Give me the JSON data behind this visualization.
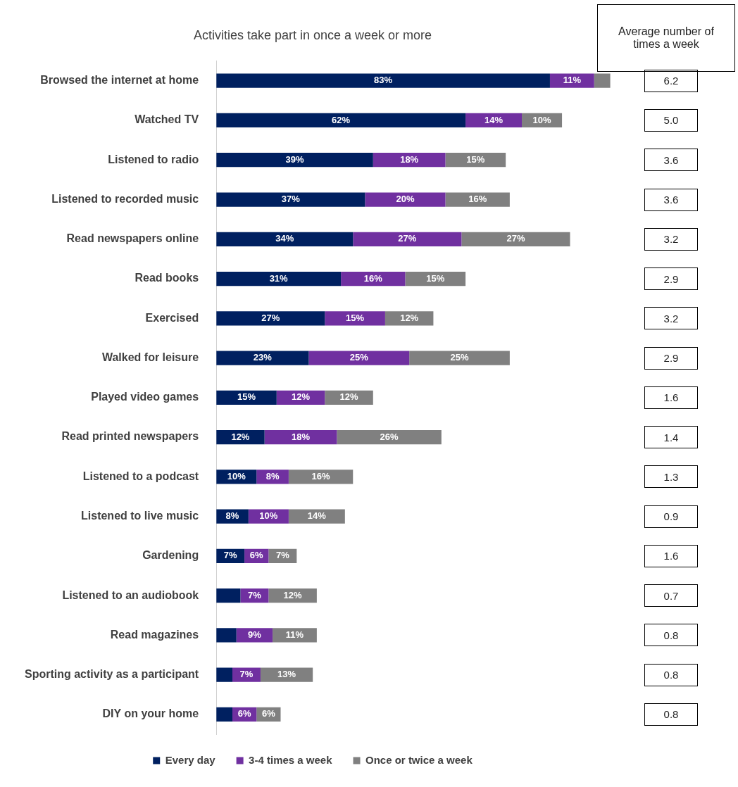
{
  "chart_data": {
    "type": "bar",
    "orientation": "horizontal",
    "stacked": true,
    "title": "Activities take part in once a week or more",
    "categories": [
      "Browsed the internet at home",
      "Watched TV",
      "Listened to radio",
      "Listened to recorded music",
      "Read newspapers online",
      "Read books",
      "Exercised",
      "Walked for leisure",
      "Played video games",
      "Read printed newspapers",
      "Listened to a podcast",
      "Listened to live music",
      "Gardening",
      "Listened to an audiobook",
      "Read magazines",
      "Sporting activity as a participant",
      "DIY on your home"
    ],
    "series": [
      {
        "name": "Every day",
        "color": "#002060",
        "values": [
          83,
          62,
          39,
          37,
          34,
          31,
          27,
          23,
          15,
          12,
          10,
          8,
          7,
          6,
          5,
          4,
          4
        ],
        "value_labels": [
          "83%",
          "62%",
          "39%",
          "37%",
          "34%",
          "31%",
          "27%",
          "23%",
          "15%",
          "12%",
          "10%",
          "8%",
          "7%",
          null,
          null,
          null,
          null
        ]
      },
      {
        "name": "3-4 times a week",
        "color": "#7030a0",
        "values": [
          11,
          14,
          18,
          20,
          27,
          16,
          15,
          25,
          12,
          18,
          8,
          10,
          6,
          7,
          9,
          7,
          6
        ],
        "value_labels": [
          "11%",
          "14%",
          "18%",
          "20%",
          "27%",
          "16%",
          "15%",
          "25%",
          "12%",
          "18%",
          "8%",
          "10%",
          "6%",
          "7%",
          "9%",
          "7%",
          "6%"
        ]
      },
      {
        "name": "Once or twice a week",
        "color": "#808080",
        "values": [
          4,
          10,
          15,
          16,
          27,
          15,
          12,
          25,
          12,
          26,
          16,
          14,
          7,
          12,
          11,
          13,
          6
        ],
        "value_labels": [
          null,
          "10%",
          "15%",
          "16%",
          "27%",
          "15%",
          "12%",
          "25%",
          "12%",
          "26%",
          "16%",
          "14%",
          "7%",
          "12%",
          "11%",
          "13%",
          "6%"
        ]
      }
    ],
    "legend": "bottom",
    "annotations": [
      "Average number of times a week",
      "6.2",
      "5.0",
      "3.6",
      "3.6",
      "3.2",
      "2.9",
      "3.2",
      "2.9",
      "1.6",
      "1.4",
      "1.3",
      "0.9",
      "1.6",
      "0.7",
      "0.8",
      "0.8",
      "0.8"
    ]
  }
}
